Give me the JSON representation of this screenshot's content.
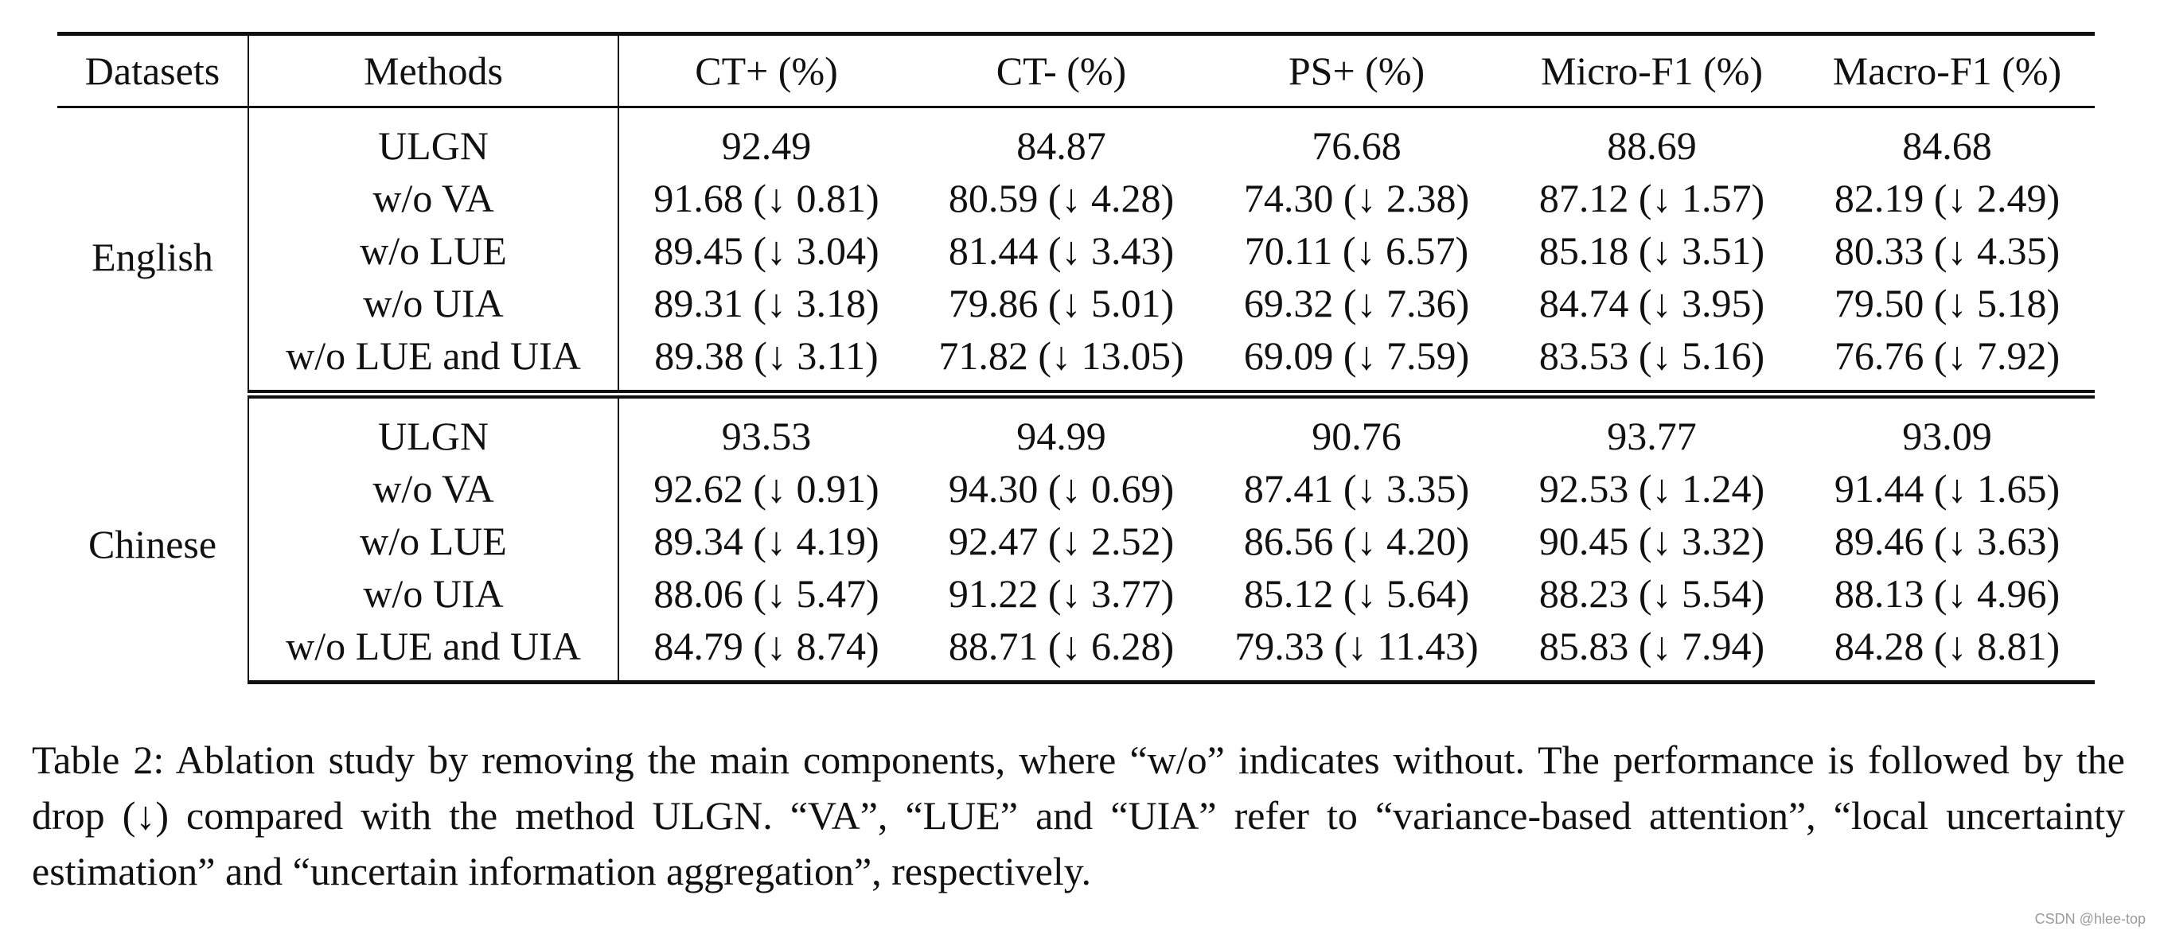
{
  "table": {
    "headers": [
      "Datasets",
      "Methods",
      "CT+ (%)",
      "CT- (%)",
      "PS+ (%)",
      "Micro-F1 (%)",
      "Macro-F1 (%)"
    ],
    "groups": [
      {
        "dataset": "English",
        "rows": [
          {
            "method": "ULGN",
            "values": [
              "92.49",
              "84.87",
              "76.68",
              "88.69",
              "84.68"
            ],
            "best": true
          },
          {
            "method": "w/o VA",
            "values": [
              "91.68 (↓ 0.81)",
              "80.59 (↓ 4.28)",
              "74.30 (↓ 2.38)",
              "87.12 (↓ 1.57)",
              "82.19 (↓ 2.49)"
            ],
            "best": false
          },
          {
            "method": "w/o LUE",
            "values": [
              "89.45 (↓ 3.04)",
              "81.44 (↓ 3.43)",
              "70.11 (↓ 6.57)",
              "85.18 (↓ 3.51)",
              "80.33 (↓ 4.35)"
            ],
            "best": false
          },
          {
            "method": "w/o UIA",
            "values": [
              "89.31 (↓ 3.18)",
              "79.86 (↓ 5.01)",
              "69.32 (↓ 7.36)",
              "84.74 (↓ 3.95)",
              "79.50 (↓ 5.18)"
            ],
            "best": false
          },
          {
            "method": "w/o LUE and UIA",
            "values": [
              "89.38 (↓ 3.11)",
              "71.82 (↓ 13.05)",
              "69.09 (↓ 7.59)",
              "83.53 (↓ 5.16)",
              "76.76 (↓ 7.92)"
            ],
            "best": false
          }
        ]
      },
      {
        "dataset": "Chinese",
        "rows": [
          {
            "method": "ULGN",
            "values": [
              "93.53",
              "94.99",
              "90.76",
              "93.77",
              "93.09"
            ],
            "best": true
          },
          {
            "method": "w/o VA",
            "values": [
              "92.62 (↓ 0.91)",
              "94.30 (↓ 0.69)",
              "87.41 (↓ 3.35)",
              "92.53 (↓ 1.24)",
              "91.44 (↓ 1.65)"
            ],
            "best": false
          },
          {
            "method": "w/o LUE",
            "values": [
              "89.34 (↓ 4.19)",
              "92.47 (↓ 2.52)",
              "86.56 (↓ 4.20)",
              "90.45 (↓ 3.32)",
              "89.46 (↓ 3.63)"
            ],
            "best": false
          },
          {
            "method": "w/o UIA",
            "values": [
              "88.06 (↓ 5.47)",
              "91.22 (↓ 3.77)",
              "85.12 (↓ 5.64)",
              "88.23 (↓ 5.54)",
              "88.13 (↓ 4.96)"
            ],
            "best": false
          },
          {
            "method": "w/o LUE and UIA",
            "values": [
              "84.79 (↓ 8.74)",
              "88.71 (↓ 6.28)",
              "79.33 (↓ 11.43)",
              "85.83 (↓ 7.94)",
              "84.28 (↓ 8.81)"
            ],
            "best": false
          }
        ]
      }
    ]
  },
  "caption": "Table 2: Ablation study by removing the main components, where “w/o” indicates without. The performance is followed by the drop (↓) compared with the method ULGN. “VA”, “LUE” and “UIA” refer to “variance-based attention”, “local uncertainty estimation” and “uncertain information aggregation”, respectively.",
  "watermark": "CSDN @hlee-top"
}
